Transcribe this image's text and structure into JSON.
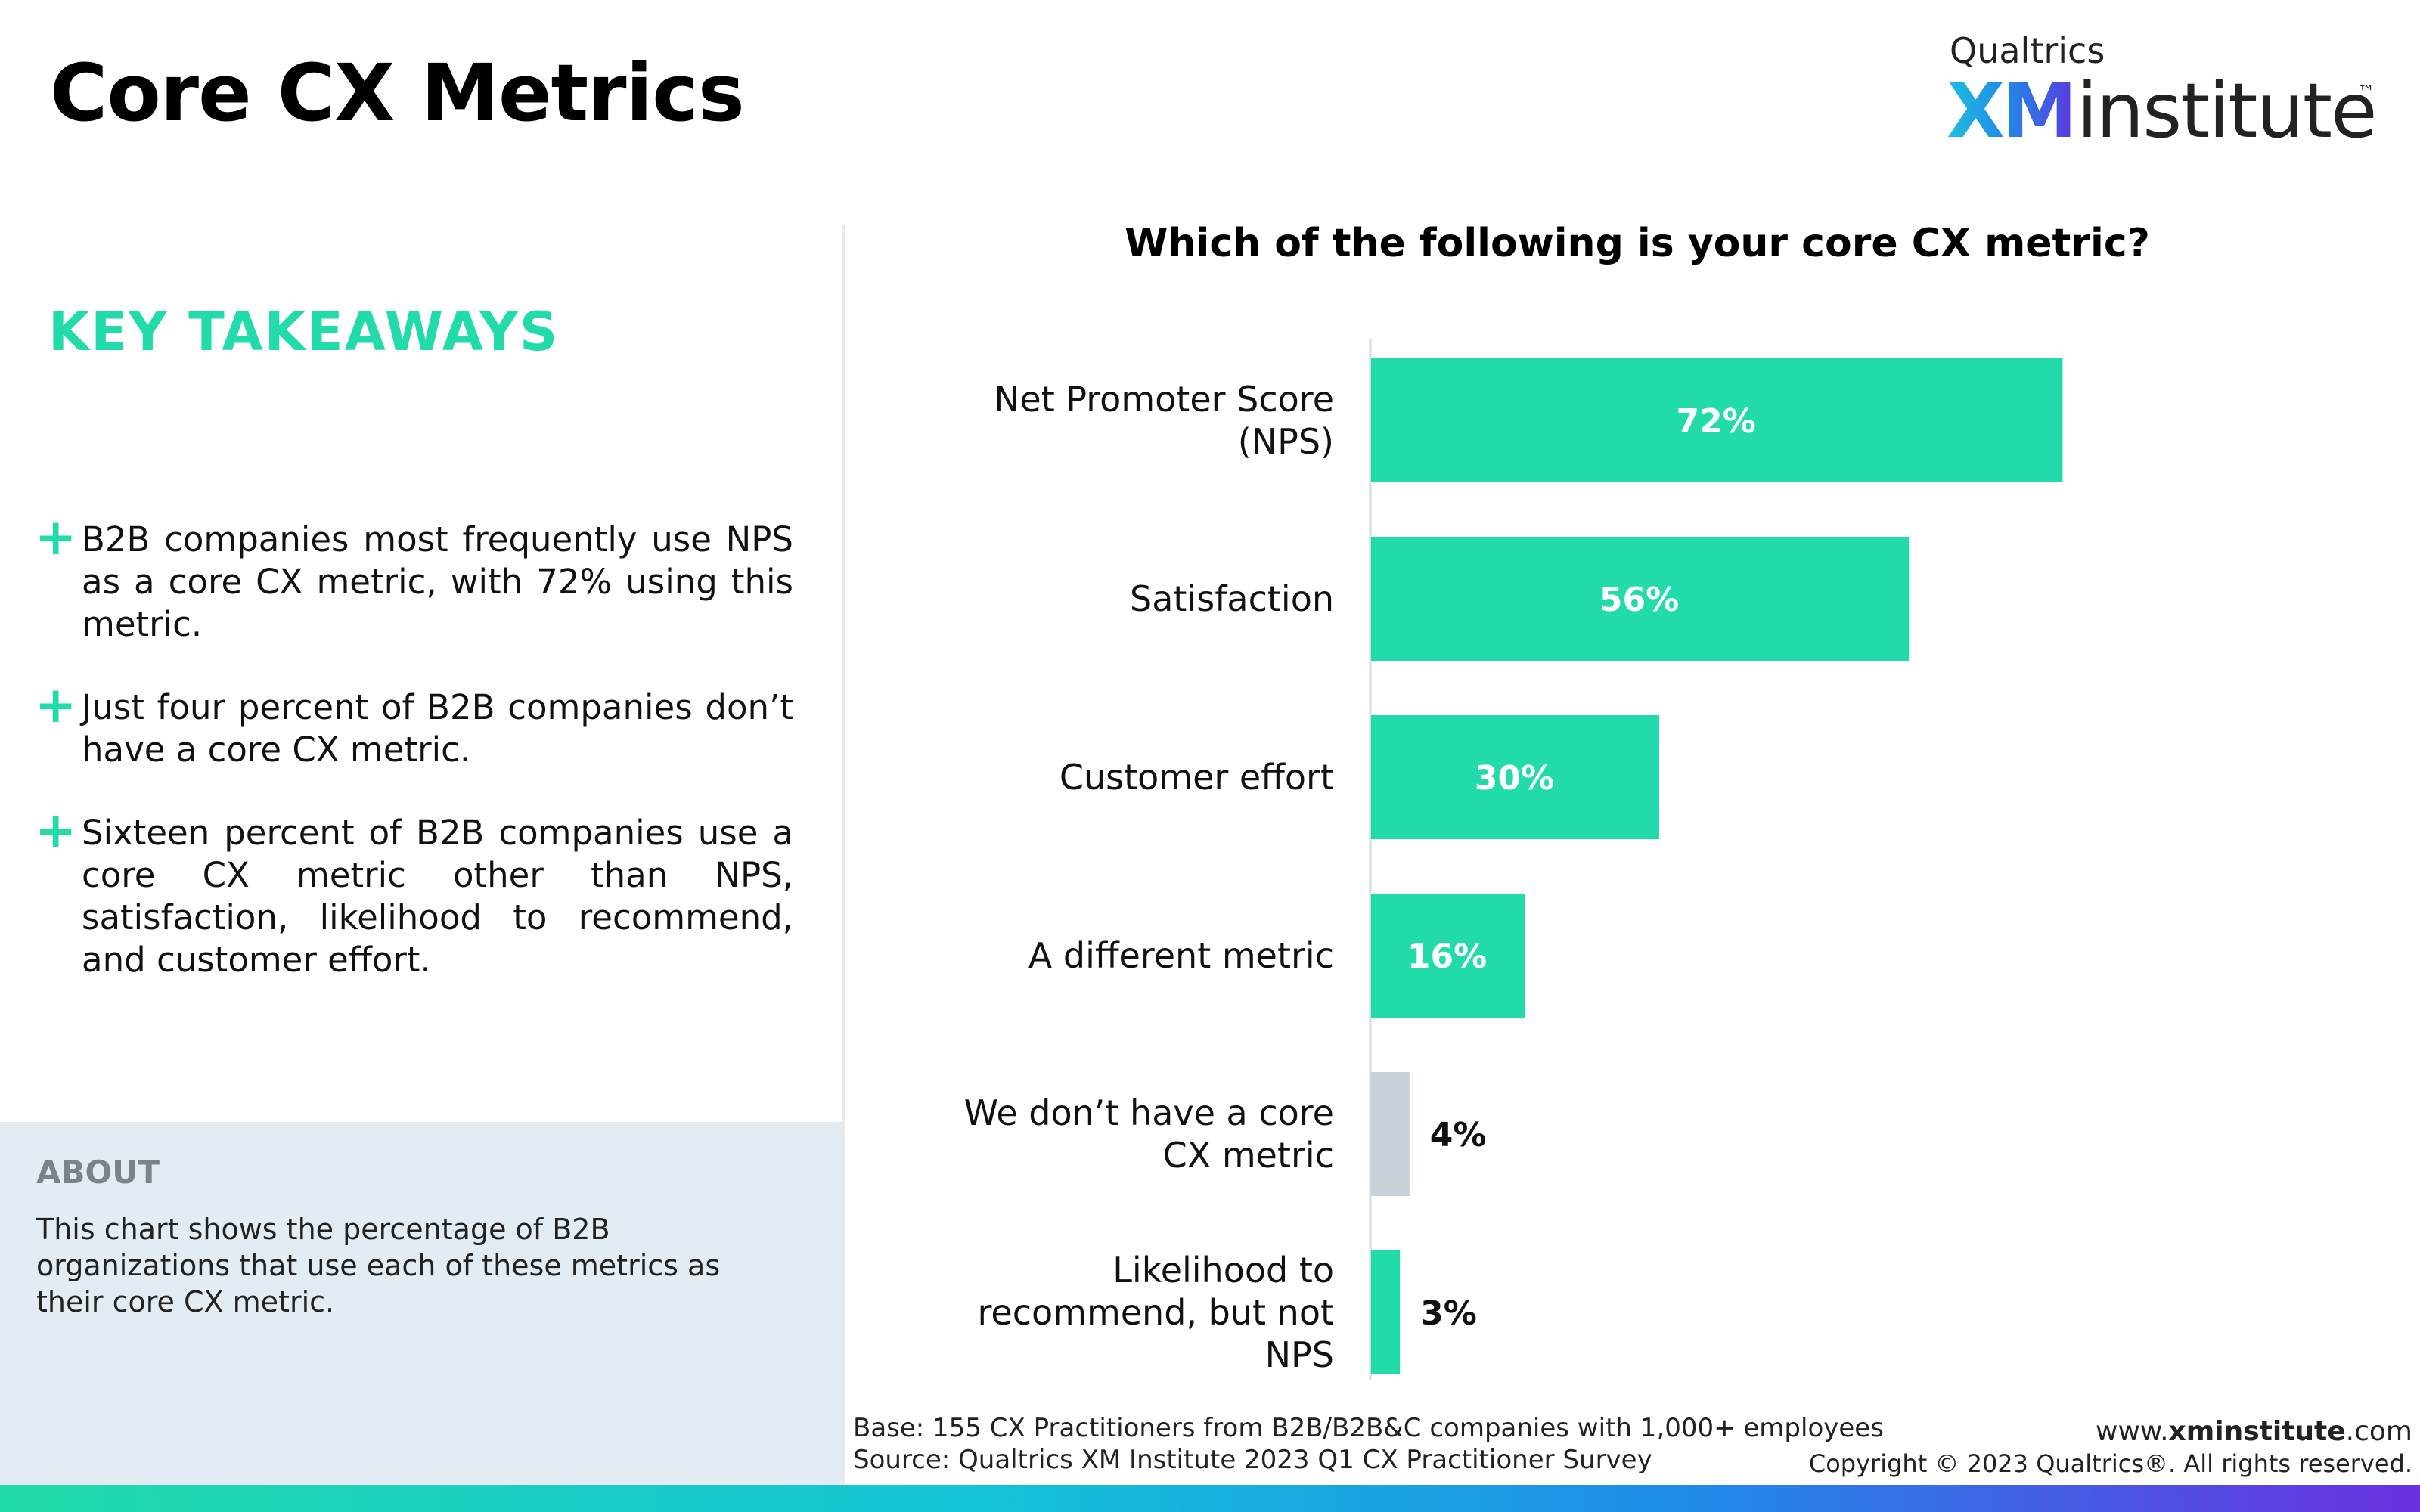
{
  "page": {
    "title": "Core CX Metrics"
  },
  "logo": {
    "top_word": "Qualtrics",
    "brand_xm": "XM",
    "brand_word": "institute",
    "trademark": "™"
  },
  "takeaways": {
    "heading": "KEY TAKEAWAYS",
    "bullet_icon": "plus-icon",
    "items": [
      "B2B companies most frequently use NPS as a core CX metric, with 72% using this metric.",
      "Just four percent of B2B companies don’t have a core CX metric.",
      "Sixteen percent of B2B companies use a core CX metric other than NPS, satisfaction, likelihood to recommend, and customer effort."
    ]
  },
  "about": {
    "title": "ABOUT",
    "text": "This chart shows the percentage of B2B organizations that use each of these metrics as their core CX metric."
  },
  "chart_data": {
    "type": "bar",
    "orientation": "horizontal",
    "title": "Which of the following is your core CX metric?",
    "categories": [
      "Net Promoter Score (NPS)",
      "Satisfaction",
      "Customer effort",
      "A different metric",
      "We don’t have a core CX metric",
      "Likelihood to recommend, but not NPS"
    ],
    "values": [
      72,
      56,
      30,
      16,
      4,
      3
    ],
    "labels": [
      "72%",
      "56%",
      "30%",
      "16%",
      "4%",
      "3%"
    ],
    "bar_colors": [
      "#22dbaa",
      "#22dbaa",
      "#22dbaa",
      "#22dbaa",
      "#c8d1d9",
      "#22dbaa"
    ],
    "xlim": [
      0,
      100
    ],
    "grid": false,
    "legend": "none"
  },
  "footer": {
    "base": "Base: 155 CX Practitioners from B2B/B2B&C companies with 1,000+ employees",
    "source": "Source: Qualtrics XM Institute 2023 Q1 CX Practitioner Survey",
    "web_prefix": "www.",
    "web_bold": "xminstitute",
    "web_suffix": ".com",
    "copyright": "Copyright © 2023 Qualtrics®. All rights reserved."
  },
  "colors": {
    "accent": "#22dbaa",
    "muted_bar": "#c8d1d9",
    "about_bg": "#e4ecf3"
  }
}
